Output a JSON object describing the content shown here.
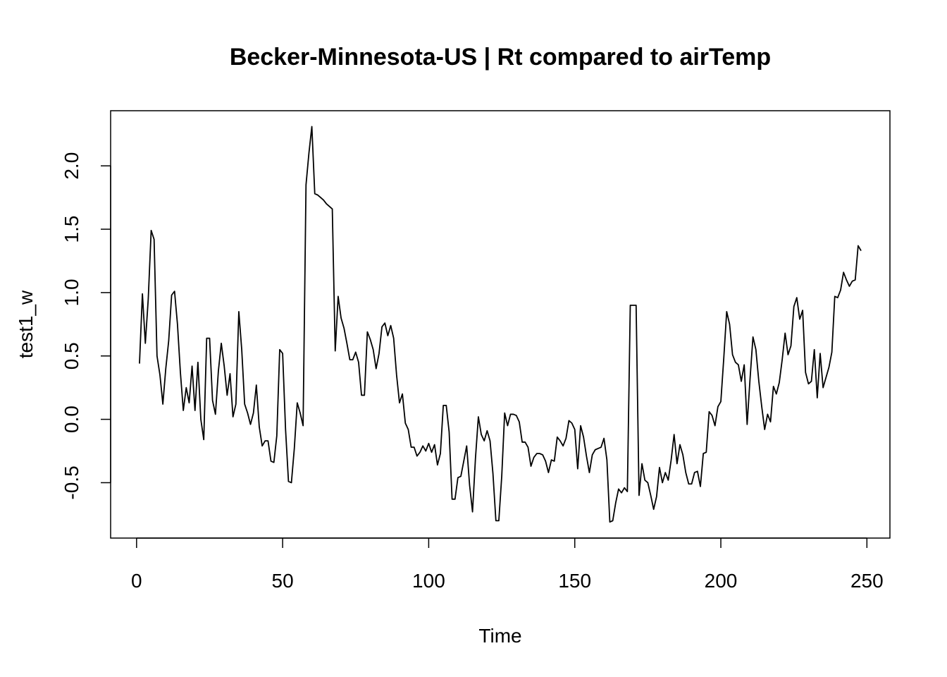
{
  "chart_data": {
    "type": "line",
    "title": "Becker-Minnesota-US | Rt compared to airTemp",
    "xlabel": "Time",
    "ylabel": "test1_w",
    "color": "#000000",
    "grid": false,
    "x": [
      1,
      2,
      3,
      4,
      5,
      6,
      7,
      8,
      9,
      10,
      11,
      12,
      13,
      14,
      15,
      16,
      17,
      18,
      19,
      20,
      21,
      22,
      23,
      24,
      25,
      26,
      27,
      28,
      29,
      30,
      31,
      32,
      33,
      34,
      35,
      36,
      37,
      38,
      39,
      40,
      41,
      42,
      43,
      44,
      45,
      46,
      47,
      48,
      49,
      50,
      51,
      52,
      53,
      54,
      55,
      56,
      57,
      58,
      59,
      60,
      61,
      62,
      63,
      64,
      65,
      66,
      67,
      68,
      69,
      70,
      71,
      72,
      73,
      74,
      75,
      76,
      77,
      78,
      79,
      80,
      81,
      82,
      83,
      84,
      85,
      86,
      87,
      88,
      89,
      90,
      91,
      92,
      93,
      94,
      95,
      96,
      97,
      98,
      99,
      100,
      101,
      102,
      103,
      104,
      105,
      106,
      107,
      108,
      109,
      110,
      111,
      112,
      113,
      114,
      115,
      116,
      117,
      118,
      119,
      120,
      121,
      122,
      123,
      124,
      125,
      126,
      127,
      128,
      129,
      130,
      131,
      132,
      133,
      134,
      135,
      136,
      137,
      138,
      139,
      140,
      141,
      142,
      143,
      144,
      145,
      146,
      147,
      148,
      149,
      150,
      151,
      152,
      153,
      154,
      155,
      156,
      157,
      158,
      159,
      160,
      161,
      162,
      163,
      164,
      165,
      166,
      167,
      168,
      169,
      170,
      171,
      172,
      173,
      174,
      175,
      176,
      177,
      178,
      179,
      180,
      181,
      182,
      183,
      184,
      185,
      186,
      187,
      188,
      189,
      190,
      191,
      192,
      193,
      194,
      195,
      196,
      197,
      198,
      199,
      200,
      201,
      202,
      203,
      204,
      205,
      206,
      207,
      208,
      209,
      210,
      211,
      212,
      213,
      214,
      215,
      216,
      217,
      218,
      219,
      220,
      221,
      222,
      223,
      224,
      225,
      226,
      227,
      228,
      229,
      230,
      231,
      232,
      233,
      234,
      235,
      236,
      237,
      238,
      239,
      240,
      241,
      242,
      243,
      244,
      245,
      246,
      247,
      248
    ],
    "values": [
      0.44,
      0.99,
      0.6,
      0.95,
      1.49,
      1.42,
      0.5,
      0.35,
      0.12,
      0.4,
      0.62,
      0.98,
      1.01,
      0.75,
      0.37,
      0.07,
      0.25,
      0.13,
      0.42,
      0.07,
      0.45,
      0.0,
      -0.16,
      0.64,
      0.64,
      0.15,
      0.04,
      0.38,
      0.6,
      0.42,
      0.19,
      0.36,
      0.02,
      0.12,
      0.85,
      0.55,
      0.12,
      0.05,
      -0.04,
      0.05,
      0.27,
      -0.06,
      -0.21,
      -0.17,
      -0.17,
      -0.33,
      -0.34,
      -0.13,
      0.55,
      0.52,
      -0.08,
      -0.49,
      -0.5,
      -0.23,
      0.13,
      0.05,
      -0.05,
      1.85,
      2.1,
      2.31,
      1.78,
      1.77,
      1.75,
      1.73,
      1.7,
      1.68,
      1.66,
      0.54,
      0.97,
      0.8,
      0.72,
      0.6,
      0.47,
      0.47,
      0.53,
      0.45,
      0.19,
      0.19,
      0.69,
      0.63,
      0.55,
      0.4,
      0.52,
      0.73,
      0.76,
      0.66,
      0.74,
      0.64,
      0.35,
      0.13,
      0.2,
      -0.03,
      -0.08,
      -0.22,
      -0.22,
      -0.29,
      -0.26,
      -0.21,
      -0.25,
      -0.19,
      -0.26,
      -0.2,
      -0.36,
      -0.27,
      0.11,
      0.11,
      -0.1,
      -0.63,
      -0.63,
      -0.46,
      -0.45,
      -0.33,
      -0.21,
      -0.52,
      -0.73,
      -0.31,
      0.02,
      -0.12,
      -0.17,
      -0.09,
      -0.17,
      -0.43,
      -0.8,
      -0.8,
      -0.45,
      0.05,
      -0.05,
      0.04,
      0.04,
      0.03,
      -0.02,
      -0.18,
      -0.18,
      -0.22,
      -0.37,
      -0.3,
      -0.27,
      -0.27,
      -0.28,
      -0.33,
      -0.42,
      -0.32,
      -0.33,
      -0.14,
      -0.17,
      -0.21,
      -0.15,
      -0.01,
      -0.03,
      -0.08,
      -0.39,
      -0.05,
      -0.14,
      -0.29,
      -0.42,
      -0.28,
      -0.24,
      -0.23,
      -0.22,
      -0.15,
      -0.32,
      -0.81,
      -0.8,
      -0.66,
      -0.55,
      -0.58,
      -0.54,
      -0.57,
      0.9,
      0.9,
      0.9,
      -0.6,
      -0.35,
      -0.48,
      -0.5,
      -0.6,
      -0.71,
      -0.61,
      -0.38,
      -0.5,
      -0.42,
      -0.48,
      -0.32,
      -0.12,
      -0.35,
      -0.2,
      -0.28,
      -0.42,
      -0.51,
      -0.51,
      -0.42,
      -0.41,
      -0.53,
      -0.27,
      -0.26,
      0.06,
      0.03,
      -0.05,
      0.1,
      0.14,
      0.48,
      0.85,
      0.75,
      0.51,
      0.45,
      0.43,
      0.3,
      0.43,
      -0.04,
      0.32,
      0.65,
      0.55,
      0.3,
      0.1,
      -0.08,
      0.04,
      -0.02,
      0.26,
      0.2,
      0.29,
      0.47,
      0.68,
      0.51,
      0.58,
      0.89,
      0.96,
      0.79,
      0.86,
      0.37,
      0.28,
      0.3,
      0.55,
      0.17,
      0.52,
      0.25,
      0.33,
      0.41,
      0.53,
      0.97,
      0.96,
      1.02,
      1.16,
      1.1,
      1.05,
      1.09,
      1.1,
      1.37,
      1.33
    ],
    "xlim": [
      -8.88,
      257.88
    ],
    "xticks": [
      0,
      50,
      100,
      150,
      200,
      250
    ],
    "ylim": [
      -0.937,
      2.435
    ],
    "yticks": [
      -0.5,
      {
        "value": 0,
        "label": "0.0"
      },
      0.5,
      {
        "value": 1,
        "label": "1.0"
      },
      1.5,
      {
        "value": 2,
        "label": "2.0"
      }
    ]
  }
}
